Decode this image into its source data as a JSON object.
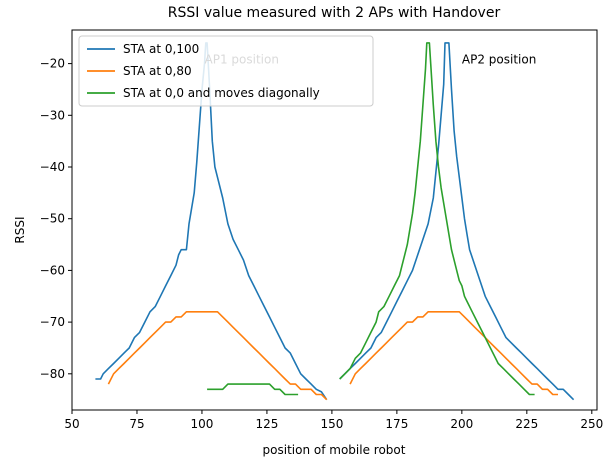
{
  "chart_data": {
    "type": "line",
    "title": "RSSI value measured with 2 APs with Handover",
    "xlabel": "position of mobile robot",
    "ylabel": "RSSI",
    "xlim": [
      50,
      252
    ],
    "ylim": [
      -87,
      -13.5
    ],
    "xticks": [
      50,
      75,
      100,
      125,
      150,
      175,
      200,
      225,
      250
    ],
    "yticks": [
      -80,
      -70,
      -60,
      -50,
      -40,
      -30,
      -20
    ],
    "grid": false,
    "legend_position": "top-left",
    "annotations": [
      {
        "text": "AP1 position",
        "x": 101,
        "y": -20,
        "color": "#bbbbbb"
      },
      {
        "text": "AP2 position",
        "x": 200,
        "y": -20,
        "color": "#000000"
      }
    ],
    "series": [
      {
        "name": "STA at 0,100",
        "color": "#1f77b4",
        "segments": [
          [
            [
              59,
              -81
            ],
            [
              61,
              -81
            ],
            [
              62,
              -80
            ],
            [
              64,
              -79
            ],
            [
              66,
              -78
            ],
            [
              68,
              -77
            ],
            [
              70,
              -76
            ],
            [
              72,
              -75
            ],
            [
              74,
              -73
            ],
            [
              76,
              -72
            ],
            [
              78,
              -70
            ],
            [
              80,
              -68
            ],
            [
              82,
              -67
            ],
            [
              84,
              -65
            ],
            [
              86,
              -63
            ],
            [
              88,
              -61
            ],
            [
              90,
              -59
            ],
            [
              91,
              -57
            ],
            [
              92,
              -56
            ],
            [
              94,
              -56
            ],
            [
              95,
              -51
            ],
            [
              97,
              -45
            ],
            [
              98,
              -39
            ],
            [
              99,
              -32
            ],
            [
              100,
              -25
            ],
            [
              101,
              -20
            ],
            [
              101.5,
              -16
            ],
            [
              102,
              -16
            ],
            [
              103,
              -25
            ],
            [
              104,
              -35
            ],
            [
              105,
              -40
            ],
            [
              106,
              -42
            ],
            [
              108,
              -46
            ],
            [
              110,
              -51
            ],
            [
              112,
              -54
            ],
            [
              114,
              -56
            ],
            [
              116,
              -58
            ],
            [
              118,
              -61
            ],
            [
              120,
              -63
            ],
            [
              122,
              -65
            ],
            [
              124,
              -67
            ],
            [
              126,
              -69
            ],
            [
              128,
              -71
            ],
            [
              130,
              -73
            ],
            [
              132,
              -75
            ],
            [
              134,
              -76
            ],
            [
              136,
              -78
            ],
            [
              138,
              -80
            ],
            [
              140,
              -81
            ],
            [
              142,
              -82
            ],
            [
              144,
              -83
            ],
            [
              146,
              -83.5
            ],
            [
              148,
              -85
            ]
          ],
          [
            [
              153,
              -81
            ],
            [
              155,
              -80
            ],
            [
              157,
              -79
            ],
            [
              159,
              -78
            ],
            [
              161,
              -77
            ],
            [
              163,
              -76
            ],
            [
              165,
              -75
            ],
            [
              167,
              -73
            ],
            [
              169,
              -72
            ],
            [
              171,
              -70
            ],
            [
              173,
              -68
            ],
            [
              175,
              -66
            ],
            [
              177,
              -64
            ],
            [
              179,
              -62
            ],
            [
              181,
              -60
            ],
            [
              183,
              -57
            ],
            [
              185,
              -54
            ],
            [
              187,
              -51
            ],
            [
              189,
              -46
            ],
            [
              190,
              -41
            ],
            [
              191,
              -36
            ],
            [
              192,
              -30
            ],
            [
              193,
              -24
            ],
            [
              193.5,
              -16
            ],
            [
              195,
              -16
            ],
            [
              196,
              -25
            ],
            [
              197,
              -33
            ],
            [
              198,
              -38
            ],
            [
              199,
              -42
            ],
            [
              200,
              -46
            ],
            [
              201,
              -50
            ],
            [
              202,
              -53
            ],
            [
              203,
              -56
            ],
            [
              205,
              -59
            ],
            [
              207,
              -62
            ],
            [
              209,
              -65
            ],
            [
              211,
              -67
            ],
            [
              213,
              -69
            ],
            [
              215,
              -71
            ],
            [
              217,
              -73
            ],
            [
              219,
              -74
            ],
            [
              221,
              -75
            ],
            [
              223,
              -76
            ],
            [
              225,
              -77
            ],
            [
              227,
              -78
            ],
            [
              229,
              -79
            ],
            [
              231,
              -80
            ],
            [
              233,
              -81
            ],
            [
              235,
              -82
            ],
            [
              237,
              -83
            ],
            [
              239,
              -83
            ],
            [
              241,
              -84
            ],
            [
              243,
              -85
            ]
          ]
        ]
      },
      {
        "name": "STA at 0,80",
        "color": "#ff7f0e",
        "segments": [
          [
            [
              64,
              -82
            ],
            [
              66,
              -80
            ],
            [
              68,
              -79
            ],
            [
              70,
              -78
            ],
            [
              72,
              -77
            ],
            [
              74,
              -76
            ],
            [
              76,
              -75
            ],
            [
              78,
              -74
            ],
            [
              80,
              -73
            ],
            [
              82,
              -72
            ],
            [
              84,
              -71
            ],
            [
              86,
              -70
            ],
            [
              88,
              -70
            ],
            [
              90,
              -69
            ],
            [
              92,
              -69
            ],
            [
              94,
              -68
            ],
            [
              96,
              -68
            ],
            [
              98,
              -68
            ],
            [
              100,
              -68
            ],
            [
              102,
              -68
            ],
            [
              104,
              -68
            ],
            [
              106,
              -68
            ],
            [
              108,
              -69
            ],
            [
              110,
              -70
            ],
            [
              112,
              -71
            ],
            [
              114,
              -72
            ],
            [
              116,
              -73
            ],
            [
              118,
              -74
            ],
            [
              120,
              -75
            ],
            [
              122,
              -76
            ],
            [
              124,
              -77
            ],
            [
              126,
              -78
            ],
            [
              128,
              -79
            ],
            [
              130,
              -80
            ],
            [
              132,
              -81
            ],
            [
              134,
              -82
            ],
            [
              136,
              -82
            ],
            [
              138,
              -83
            ],
            [
              140,
              -83
            ],
            [
              142,
              -83
            ],
            [
              144,
              -84
            ],
            [
              146,
              -84
            ],
            [
              148,
              -85
            ]
          ],
          [
            [
              157,
              -82
            ],
            [
              159,
              -80
            ],
            [
              161,
              -79
            ],
            [
              163,
              -78
            ],
            [
              165,
              -77
            ],
            [
              167,
              -76
            ],
            [
              169,
              -75
            ],
            [
              171,
              -74
            ],
            [
              173,
              -73
            ],
            [
              175,
              -72
            ],
            [
              177,
              -71
            ],
            [
              179,
              -70
            ],
            [
              181,
              -70
            ],
            [
              183,
              -69
            ],
            [
              185,
              -69
            ],
            [
              187,
              -68
            ],
            [
              189,
              -68
            ],
            [
              191,
              -68
            ],
            [
              193,
              -68
            ],
            [
              195,
              -68
            ],
            [
              197,
              -68
            ],
            [
              199,
              -68
            ],
            [
              201,
              -69
            ],
            [
              203,
              -70
            ],
            [
              205,
              -71
            ],
            [
              207,
              -72
            ],
            [
              209,
              -73
            ],
            [
              211,
              -74
            ],
            [
              213,
              -75
            ],
            [
              215,
              -76
            ],
            [
              217,
              -77
            ],
            [
              219,
              -78
            ],
            [
              221,
              -79
            ],
            [
              223,
              -80
            ],
            [
              225,
              -81
            ],
            [
              227,
              -82
            ],
            [
              229,
              -82
            ],
            [
              231,
              -83
            ],
            [
              233,
              -83
            ],
            [
              235,
              -84
            ],
            [
              237,
              -84
            ]
          ]
        ]
      },
      {
        "name": "STA at 0,0 and moves diagonally",
        "color": "#2ca02c",
        "segments": [
          [
            [
              102,
              -83
            ],
            [
              104,
              -83
            ],
            [
              106,
              -83
            ],
            [
              108,
              -83
            ],
            [
              110,
              -82
            ],
            [
              112,
              -82
            ],
            [
              114,
              -82
            ],
            [
              116,
              -82
            ],
            [
              118,
              -82
            ],
            [
              120,
              -82
            ],
            [
              122,
              -82
            ],
            [
              124,
              -82
            ],
            [
              126,
              -82
            ],
            [
              128,
              -83
            ],
            [
              130,
              -83
            ],
            [
              132,
              -84
            ],
            [
              134,
              -84
            ],
            [
              136,
              -84
            ],
            [
              137,
              -84
            ]
          ],
          [
            [
              153,
              -81
            ],
            [
              155,
              -80
            ],
            [
              157,
              -79
            ],
            [
              159,
              -77
            ],
            [
              161,
              -76
            ],
            [
              163,
              -74
            ],
            [
              165,
              -72
            ],
            [
              167,
              -70
            ],
            [
              168,
              -68
            ],
            [
              170,
              -67
            ],
            [
              172,
              -65
            ],
            [
              174,
              -63
            ],
            [
              176,
              -61
            ],
            [
              177,
              -59
            ],
            [
              178,
              -57
            ],
            [
              179,
              -55
            ],
            [
              180,
              -52
            ],
            [
              181,
              -49
            ],
            [
              182,
              -45
            ],
            [
              183,
              -40
            ],
            [
              184,
              -35
            ],
            [
              185,
              -28
            ],
            [
              186,
              -21
            ],
            [
              186.5,
              -16
            ],
            [
              187.5,
              -16
            ],
            [
              188,
              -20
            ],
            [
              189,
              -28
            ],
            [
              190,
              -35
            ],
            [
              191,
              -40
            ],
            [
              192,
              -44
            ],
            [
              193,
              -47
            ],
            [
              194,
              -50
            ],
            [
              195,
              -53
            ],
            [
              196,
              -56
            ],
            [
              197,
              -58
            ],
            [
              198,
              -60
            ],
            [
              199,
              -62
            ],
            [
              200,
              -63
            ],
            [
              201,
              -65
            ],
            [
              202,
              -66
            ],
            [
              204,
              -68
            ],
            [
              206,
              -70
            ],
            [
              208,
              -72
            ],
            [
              210,
              -74
            ],
            [
              212,
              -76
            ],
            [
              214,
              -78
            ],
            [
              216,
              -79
            ],
            [
              218,
              -80
            ],
            [
              220,
              -81
            ],
            [
              222,
              -82
            ],
            [
              224,
              -83
            ],
            [
              226,
              -84
            ],
            [
              228,
              -84
            ]
          ]
        ]
      }
    ]
  }
}
